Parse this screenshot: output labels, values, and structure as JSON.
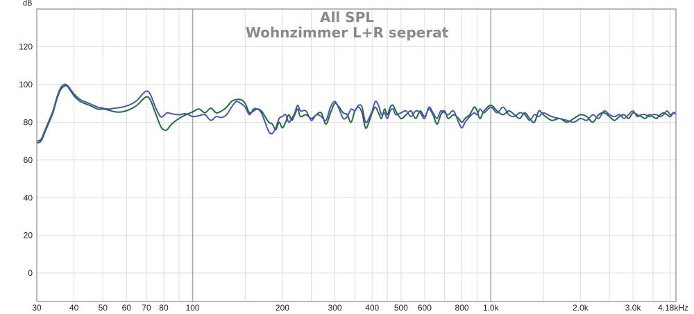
{
  "chart_data": {
    "type": "line",
    "title": "All SPL",
    "subtitle": "Wohnzimmer L+R seperat",
    "ylabel": "dB",
    "xlabel": "",
    "x_scale": "log",
    "xlim": [
      30,
      4180
    ],
    "ylim": [
      -15,
      140
    ],
    "grid": true,
    "legend": "none",
    "y_ticks": [
      {
        "value": 120,
        "label": "120"
      },
      {
        "value": 100,
        "label": "100"
      },
      {
        "value": 80,
        "label": "80"
      },
      {
        "value": 60,
        "label": "60"
      },
      {
        "value": 40,
        "label": "40"
      },
      {
        "value": 20,
        "label": "20"
      },
      {
        "value": 0,
        "label": "0"
      }
    ],
    "x_ticks": [
      {
        "value": 30,
        "label": "30"
      },
      {
        "value": 40,
        "label": "40"
      },
      {
        "value": 50,
        "label": "50"
      },
      {
        "value": 60,
        "label": "60"
      },
      {
        "value": 70,
        "label": "70"
      },
      {
        "value": 80,
        "label": "80"
      },
      {
        "value": 100,
        "label": "100"
      },
      {
        "value": 200,
        "label": "200"
      },
      {
        "value": 300,
        "label": "300"
      },
      {
        "value": 400,
        "label": "400"
      },
      {
        "value": 500,
        "label": "500"
      },
      {
        "value": 600,
        "label": "600"
      },
      {
        "value": 800,
        "label": "800"
      },
      {
        "value": 1000,
        "label": "1.0k"
      },
      {
        "value": 2000,
        "label": "2.0k"
      },
      {
        "value": 3000,
        "label": "3.0k"
      },
      {
        "value": 4180,
        "label": "4.18kHz"
      }
    ],
    "x_minor_grid": [
      90,
      150,
      250,
      350,
      450,
      700,
      900,
      1500,
      2500,
      3500,
      4000
    ],
    "x_major_grid": [
      100,
      1000
    ],
    "series": [
      {
        "color": "#1e6b3c",
        "points": [
          [
            30,
            69
          ],
          [
            31,
            70
          ],
          [
            32,
            75
          ],
          [
            33,
            80
          ],
          [
            34,
            85
          ],
          [
            35,
            92
          ],
          [
            36,
            97
          ],
          [
            37,
            99
          ],
          [
            38,
            99
          ],
          [
            40,
            94
          ],
          [
            42,
            91
          ],
          [
            45,
            89
          ],
          [
            48,
            87
          ],
          [
            50,
            87
          ],
          [
            52,
            86.5
          ],
          [
            55,
            85.5
          ],
          [
            58,
            85.5
          ],
          [
            62,
            87
          ],
          [
            65,
            89
          ],
          [
            68,
            92
          ],
          [
            70,
            93.5
          ],
          [
            72,
            92
          ],
          [
            75,
            85
          ],
          [
            78,
            78
          ],
          [
            80,
            76
          ],
          [
            82,
            76
          ],
          [
            85,
            79
          ],
          [
            90,
            82
          ],
          [
            95,
            84
          ],
          [
            100,
            85.5
          ],
          [
            105,
            87
          ],
          [
            110,
            85
          ],
          [
            115,
            87.5
          ],
          [
            120,
            85
          ],
          [
            125,
            86
          ],
          [
            130,
            88
          ],
          [
            135,
            91
          ],
          [
            140,
            92
          ],
          [
            145,
            92
          ],
          [
            150,
            90
          ],
          [
            155,
            85
          ],
          [
            160,
            86
          ],
          [
            165,
            87
          ],
          [
            170,
            86
          ],
          [
            175,
            83
          ],
          [
            180,
            80
          ],
          [
            185,
            79
          ],
          [
            190,
            76
          ],
          [
            195,
            80
          ],
          [
            200,
            77
          ],
          [
            205,
            80
          ],
          [
            210,
            84
          ],
          [
            215,
            81
          ],
          [
            220,
            84
          ],
          [
            225,
            87
          ],
          [
            230,
            83
          ],
          [
            240,
            84
          ],
          [
            250,
            82
          ],
          [
            260,
            84
          ],
          [
            270,
            85
          ],
          [
            280,
            79
          ],
          [
            290,
            85
          ],
          [
            300,
            90
          ],
          [
            310,
            88
          ],
          [
            320,
            85
          ],
          [
            330,
            84
          ],
          [
            340,
            80
          ],
          [
            350,
            86
          ],
          [
            360,
            88
          ],
          [
            370,
            85
          ],
          [
            380,
            77
          ],
          [
            390,
            80
          ],
          [
            400,
            85
          ],
          [
            410,
            88
          ],
          [
            420,
            85
          ],
          [
            430,
            82
          ],
          [
            440,
            87
          ],
          [
            450,
            84
          ],
          [
            460,
            88
          ],
          [
            470,
            89
          ],
          [
            480,
            86
          ],
          [
            500,
            82
          ],
          [
            520,
            84
          ],
          [
            540,
            86
          ],
          [
            560,
            82
          ],
          [
            580,
            86
          ],
          [
            600,
            83
          ],
          [
            620,
            87
          ],
          [
            640,
            84
          ],
          [
            660,
            79
          ],
          [
            680,
            84
          ],
          [
            700,
            86
          ],
          [
            720,
            82
          ],
          [
            750,
            84
          ],
          [
            780,
            82
          ],
          [
            800,
            80
          ],
          [
            820,
            82
          ],
          [
            850,
            84
          ],
          [
            880,
            88
          ],
          [
            900,
            86
          ],
          [
            920,
            82
          ],
          [
            950,
            86
          ],
          [
            1000,
            89
          ],
          [
            1050,
            86
          ],
          [
            1100,
            84
          ],
          [
            1150,
            86
          ],
          [
            1200,
            84
          ],
          [
            1250,
            82
          ],
          [
            1300,
            85
          ],
          [
            1350,
            82
          ],
          [
            1400,
            80
          ],
          [
            1450,
            86
          ],
          [
            1500,
            84
          ],
          [
            1600,
            81
          ],
          [
            1700,
            82
          ],
          [
            1800,
            80
          ],
          [
            1900,
            82
          ],
          [
            2000,
            84
          ],
          [
            2100,
            83
          ],
          [
            2200,
            80
          ],
          [
            2300,
            84
          ],
          [
            2400,
            85
          ],
          [
            2500,
            83
          ],
          [
            2600,
            81
          ],
          [
            2700,
            83
          ],
          [
            2800,
            84
          ],
          [
            2900,
            82
          ],
          [
            3000,
            85
          ],
          [
            3100,
            84
          ],
          [
            3200,
            83
          ],
          [
            3300,
            82
          ],
          [
            3400,
            84
          ],
          [
            3500,
            83
          ],
          [
            3600,
            82
          ],
          [
            3700,
            84
          ],
          [
            3800,
            85
          ],
          [
            3900,
            84
          ],
          [
            4000,
            83
          ],
          [
            4100,
            85
          ],
          [
            4180,
            85
          ]
        ]
      },
      {
        "color": "#4f52b5",
        "points": [
          [
            30,
            70
          ],
          [
            31,
            71
          ],
          [
            32,
            76
          ],
          [
            33,
            81
          ],
          [
            34,
            86
          ],
          [
            35,
            93
          ],
          [
            36,
            98
          ],
          [
            37,
            100
          ],
          [
            38,
            99.5
          ],
          [
            40,
            95
          ],
          [
            42,
            92
          ],
          [
            45,
            90
          ],
          [
            48,
            88
          ],
          [
            50,
            87.5
          ],
          [
            52,
            87
          ],
          [
            55,
            87.5
          ],
          [
            58,
            88
          ],
          [
            62,
            89.5
          ],
          [
            65,
            91.5
          ],
          [
            68,
            95
          ],
          [
            70,
            96.5
          ],
          [
            72,
            95
          ],
          [
            75,
            88
          ],
          [
            78,
            83
          ],
          [
            80,
            83.5
          ],
          [
            82,
            85
          ],
          [
            85,
            84.5
          ],
          [
            90,
            84
          ],
          [
            95,
            84.5
          ],
          [
            100,
            83
          ],
          [
            105,
            83.5
          ],
          [
            110,
            84
          ],
          [
            115,
            81
          ],
          [
            120,
            83
          ],
          [
            125,
            82.5
          ],
          [
            130,
            84
          ],
          [
            135,
            88
          ],
          [
            140,
            91
          ],
          [
            145,
            90
          ],
          [
            150,
            88
          ],
          [
            155,
            84
          ],
          [
            160,
            87
          ],
          [
            165,
            87
          ],
          [
            170,
            85
          ],
          [
            175,
            80
          ],
          [
            180,
            75
          ],
          [
            185,
            74
          ],
          [
            190,
            77
          ],
          [
            195,
            82
          ],
          [
            200,
            83
          ],
          [
            205,
            84
          ],
          [
            210,
            80
          ],
          [
            215,
            82
          ],
          [
            220,
            85
          ],
          [
            225,
            89
          ],
          [
            230,
            86
          ],
          [
            240,
            86
          ],
          [
            250,
            81
          ],
          [
            260,
            84
          ],
          [
            270,
            83
          ],
          [
            280,
            81
          ],
          [
            290,
            88
          ],
          [
            300,
            91
          ],
          [
            310,
            87
          ],
          [
            320,
            82
          ],
          [
            330,
            83
          ],
          [
            340,
            87
          ],
          [
            350,
            86
          ],
          [
            360,
            89
          ],
          [
            370,
            88
          ],
          [
            380,
            80
          ],
          [
            390,
            82
          ],
          [
            400,
            86
          ],
          [
            410,
            91
          ],
          [
            420,
            89
          ],
          [
            430,
            84
          ],
          [
            440,
            85
          ],
          [
            450,
            82
          ],
          [
            460,
            86
          ],
          [
            470,
            87
          ],
          [
            480,
            84
          ],
          [
            500,
            85
          ],
          [
            520,
            86
          ],
          [
            540,
            83
          ],
          [
            560,
            86
          ],
          [
            580,
            85
          ],
          [
            600,
            82
          ],
          [
            620,
            88
          ],
          [
            640,
            85
          ],
          [
            660,
            82
          ],
          [
            680,
            86
          ],
          [
            700,
            85
          ],
          [
            720,
            84
          ],
          [
            750,
            86
          ],
          [
            780,
            80
          ],
          [
            800,
            77
          ],
          [
            820,
            80
          ],
          [
            850,
            83
          ],
          [
            880,
            85
          ],
          [
            900,
            84
          ],
          [
            920,
            87
          ],
          [
            950,
            85
          ],
          [
            1000,
            88
          ],
          [
            1050,
            85
          ],
          [
            1100,
            88
          ],
          [
            1150,
            84
          ],
          [
            1200,
            83
          ],
          [
            1250,
            85
          ],
          [
            1300,
            84
          ],
          [
            1350,
            81
          ],
          [
            1400,
            84
          ],
          [
            1450,
            83
          ],
          [
            1500,
            85
          ],
          [
            1600,
            83
          ],
          [
            1700,
            82
          ],
          [
            1800,
            81
          ],
          [
            1900,
            80
          ],
          [
            2000,
            82
          ],
          [
            2100,
            81
          ],
          [
            2200,
            84
          ],
          [
            2300,
            82
          ],
          [
            2400,
            86
          ],
          [
            2500,
            84
          ],
          [
            2600,
            83
          ],
          [
            2700,
            84
          ],
          [
            2800,
            82
          ],
          [
            2900,
            84
          ],
          [
            3000,
            86
          ],
          [
            3100,
            83
          ],
          [
            3200,
            84
          ],
          [
            3300,
            84
          ],
          [
            3400,
            83
          ],
          [
            3500,
            84
          ],
          [
            3600,
            84
          ],
          [
            3700,
            83
          ],
          [
            3800,
            84
          ],
          [
            3900,
            86
          ],
          [
            4000,
            84
          ],
          [
            4100,
            85
          ],
          [
            4180,
            84
          ]
        ]
      }
    ]
  }
}
